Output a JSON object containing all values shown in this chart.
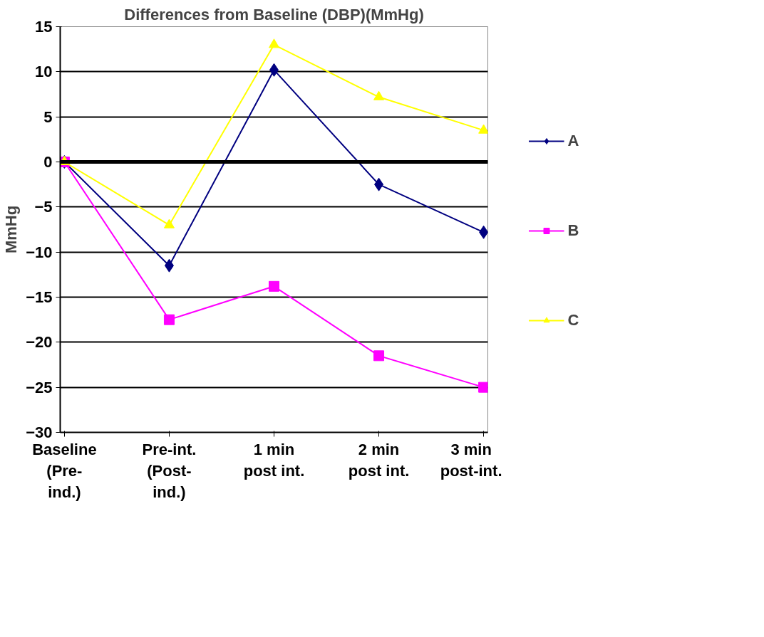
{
  "chart_data": {
    "type": "line",
    "title": "Differences from Baseline (DBP)(MmHg)",
    "ylabel": "MmHg",
    "categories": [
      "Baseline\n(Pre-\nind.)",
      "Pre-int.\n(Post-\nind.)",
      "1 min\npost int.",
      "2 min\npost int.",
      "3 min\npost-int."
    ],
    "series": [
      {
        "name": "A",
        "color": "#000080",
        "marker": "diamond",
        "values": [
          0,
          -11.5,
          10.2,
          -2.5,
          -7.8
        ]
      },
      {
        "name": "B",
        "color": "#ff00ff",
        "marker": "square",
        "values": [
          0,
          -17.5,
          -13.8,
          -21.5,
          -25
        ]
      },
      {
        "name": "C",
        "color": "#ffff00",
        "marker": "triangle",
        "values": [
          0,
          -7,
          13,
          7.2,
          3.5
        ]
      }
    ],
    "ylim": [
      -30,
      15
    ],
    "yticks": [
      -30,
      -25,
      -20,
      -15,
      -10,
      -5,
      0,
      5,
      10,
      15
    ],
    "ref_lines": [
      {
        "axis": "y",
        "value": 0,
        "color": "#000000"
      }
    ],
    "grid": "y",
    "legend": "right",
    "line_style": "solid"
  }
}
